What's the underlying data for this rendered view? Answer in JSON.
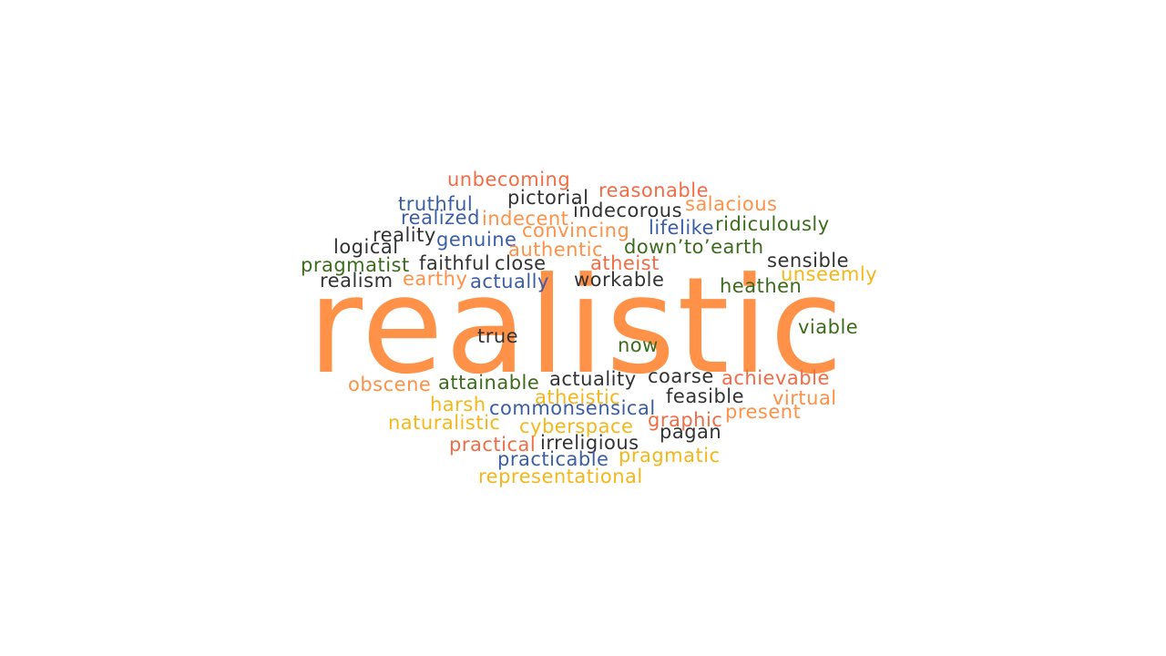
{
  "colors": {
    "orange": "#ff9148",
    "red": "#f26c45",
    "dark": "#333333",
    "blue": "#3b5ea6",
    "green": "#3d6b1e",
    "yellow": "#f5b719"
  },
  "main_word": {
    "text": "realistic",
    "color": "orange"
  },
  "words": [
    {
      "text": "unbecoming",
      "color": "red"
    },
    {
      "text": "pictorial",
      "color": "dark"
    },
    {
      "text": "reasonable",
      "color": "red"
    },
    {
      "text": "truthful",
      "color": "blue"
    },
    {
      "text": "indecorous",
      "color": "dark"
    },
    {
      "text": "salacious",
      "color": "orange"
    },
    {
      "text": "realized",
      "color": "blue"
    },
    {
      "text": "indecent",
      "color": "orange"
    },
    {
      "text": "lifelike",
      "color": "blue"
    },
    {
      "text": "ridiculously",
      "color": "green"
    },
    {
      "text": "reality",
      "color": "dark"
    },
    {
      "text": "convincing",
      "color": "orange"
    },
    {
      "text": "genuine",
      "color": "blue"
    },
    {
      "text": "logical",
      "color": "dark"
    },
    {
      "text": "authentic",
      "color": "orange"
    },
    {
      "text": "down’to’earth",
      "color": "green"
    },
    {
      "text": "pragmatist",
      "color": "green"
    },
    {
      "text": "faithful",
      "color": "dark"
    },
    {
      "text": "close",
      "color": "dark"
    },
    {
      "text": "atheist",
      "color": "red"
    },
    {
      "text": "sensible",
      "color": "dark"
    },
    {
      "text": "realism",
      "color": "dark"
    },
    {
      "text": "earthy",
      "color": "orange"
    },
    {
      "text": "actually",
      "color": "blue"
    },
    {
      "text": "workable",
      "color": "dark"
    },
    {
      "text": "unseemly",
      "color": "yellow"
    },
    {
      "text": "heathen",
      "color": "green"
    },
    {
      "text": "viable",
      "color": "green"
    },
    {
      "text": "true",
      "color": "dark"
    },
    {
      "text": "now",
      "color": "green"
    },
    {
      "text": "obscene",
      "color": "orange"
    },
    {
      "text": "attainable",
      "color": "green"
    },
    {
      "text": "actuality",
      "color": "dark"
    },
    {
      "text": "coarse",
      "color": "dark"
    },
    {
      "text": "achievable",
      "color": "red"
    },
    {
      "text": "harsh",
      "color": "yellow"
    },
    {
      "text": "atheistic",
      "color": "yellow"
    },
    {
      "text": "feasible",
      "color": "dark"
    },
    {
      "text": "virtual",
      "color": "orange"
    },
    {
      "text": "commonsensical",
      "color": "blue"
    },
    {
      "text": "present",
      "color": "orange"
    },
    {
      "text": "naturalistic",
      "color": "yellow"
    },
    {
      "text": "cyberspace",
      "color": "yellow"
    },
    {
      "text": "graphic",
      "color": "red"
    },
    {
      "text": "pagan",
      "color": "dark"
    },
    {
      "text": "practical",
      "color": "red"
    },
    {
      "text": "irreligious",
      "color": "dark"
    },
    {
      "text": "pragmatic",
      "color": "yellow"
    },
    {
      "text": "practicable",
      "color": "blue"
    },
    {
      "text": "representational",
      "color": "yellow"
    }
  ]
}
